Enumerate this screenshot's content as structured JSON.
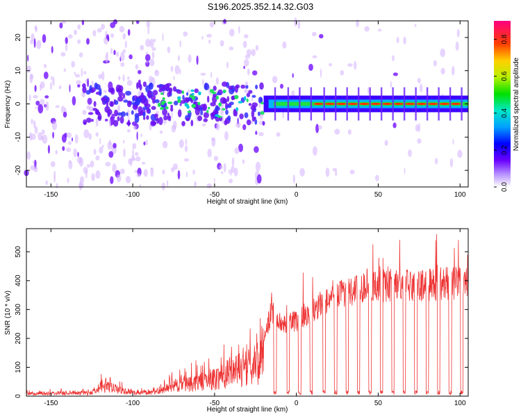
{
  "title": "S196.2025.352.14.32.G03",
  "chart_data": [
    {
      "type": "heatmap",
      "name": "spectrogram",
      "xlabel": "Height of straight line (km)",
      "ylabel": "Frequency (Hz)",
      "xlim": [
        -165,
        105
      ],
      "ylim": [
        -25,
        25
      ],
      "xticks": [
        -150,
        -100,
        -50,
        0,
        50,
        100
      ],
      "yticks": [
        -20,
        -10,
        0,
        10,
        20
      ],
      "colorbar": {
        "label": "Normalized spectral amplitude",
        "range": [
          0.0,
          0.9
        ],
        "ticks": [
          0.0,
          0.2,
          0.4,
          0.6,
          0.8
        ]
      },
      "signal_band_center_hz": 0,
      "signal_onset_height_km": -20
    },
    {
      "type": "line",
      "name": "snr",
      "xlabel": "Height of straight line (km)",
      "ylabel": "SNR (10 * v/v)",
      "xlim": [
        -165,
        105
      ],
      "ylim": [
        0,
        580
      ],
      "xticks": [
        -150,
        -100,
        -50,
        0,
        50,
        100
      ],
      "yticks": [
        0,
        100,
        200,
        300,
        400,
        500
      ],
      "color": "#ee3333",
      "envelope": {
        "x": [
          -165,
          -125,
          -120,
          -110,
          -100,
          -85,
          -75,
          -60,
          -50,
          -40,
          -30,
          -20,
          -15,
          -10,
          0,
          10,
          20,
          30,
          40,
          50,
          60,
          70,
          80,
          90,
          100,
          105
        ],
        "y": [
          15,
          20,
          60,
          40,
          20,
          20,
          60,
          80,
          100,
          140,
          160,
          200,
          300,
          250,
          260,
          300,
          340,
          360,
          380,
          380,
          385,
          380,
          385,
          390,
          390,
          390
        ]
      },
      "dropouts_km": [
        -13,
        -5,
        2,
        9,
        17,
        24,
        31,
        38,
        45,
        52,
        59,
        66,
        73,
        80,
        87,
        94,
        101
      ]
    }
  ]
}
